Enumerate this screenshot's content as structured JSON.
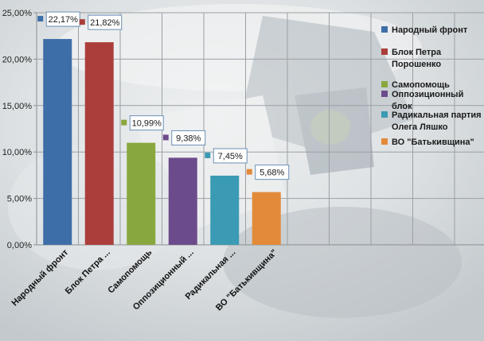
{
  "chart_data": {
    "type": "bar",
    "categories": [
      "Народный фронт",
      "Блок Петра ...",
      "Самопомощь",
      "Оппозиционный ...",
      "Радикальная ...",
      "ВО \"Батькивщина\""
    ],
    "values": [
      22.17,
      21.82,
      10.99,
      9.38,
      7.45,
      5.68
    ],
    "data_labels": [
      "22,17%",
      "21,82%",
      "10,99%",
      "9,38%",
      "7,45%",
      "5,68%"
    ],
    "colors": [
      "#3d6ea8",
      "#ab3e3b",
      "#89a73f",
      "#6c4b8c",
      "#3b9ab4",
      "#e28a3a"
    ],
    "legend": [
      {
        "lines": [
          "Народный фронт"
        ],
        "color": "#3d6ea8"
      },
      {
        "lines": [
          "Блок Петра",
          "Порошенко"
        ],
        "color": "#ab3e3b"
      },
      {
        "lines": [
          "Самопомощь"
        ],
        "color": "#89a73f"
      },
      {
        "lines": [
          "Оппозиционный",
          "блок"
        ],
        "color": "#6c4b8c"
      },
      {
        "lines": [
          "Радикальная партия",
          "Олега Ляшко"
        ],
        "color": "#3b9ab4"
      },
      {
        "lines": [
          "ВО \"Батькивщина\""
        ],
        "color": "#e28a3a"
      }
    ],
    "yticks": [
      0,
      5,
      10,
      15,
      20,
      25
    ],
    "ytick_labels": [
      "0,00%",
      "5,00%",
      "10,00%",
      "15,00%",
      "20,00%",
      "25,00%"
    ],
    "ylim": [
      0,
      25
    ],
    "grid": true,
    "legend_position": "right"
  }
}
